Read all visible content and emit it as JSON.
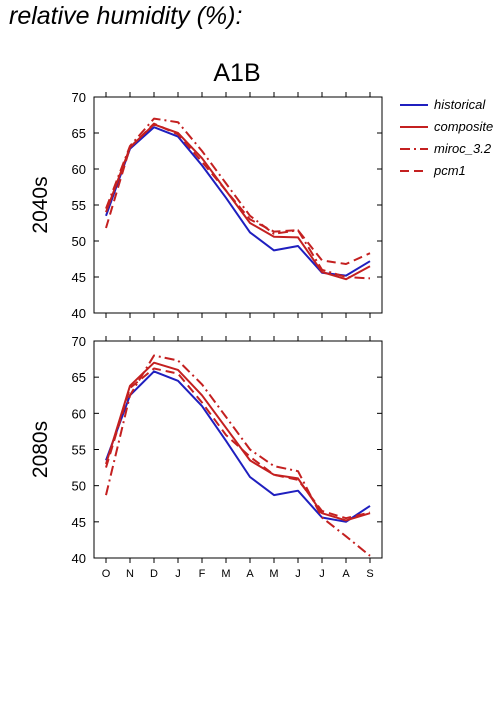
{
  "header": {
    "title": "relative humidity (%):"
  },
  "scenario": "A1B",
  "legend": [
    {
      "name": "historical",
      "color": "#1f1fbf",
      "dash": "solid"
    },
    {
      "name": "composite",
      "color": "#c42020",
      "dash": "solid"
    },
    {
      "name": "miroc_3.2",
      "color": "#c42020",
      "dash": "dashdot"
    },
    {
      "name": "pcm1",
      "color": "#c42020",
      "dash": "dashed"
    }
  ],
  "chart_data": [
    {
      "type": "line",
      "title": "A1B",
      "ylabel": "2040s",
      "xlabel": "",
      "categories": [
        "O",
        "N",
        "D",
        "J",
        "F",
        "M",
        "A",
        "M",
        "J",
        "J",
        "A",
        "S"
      ],
      "ylim": [
        40,
        70
      ],
      "yticks": [
        40,
        45,
        50,
        55,
        60,
        65,
        70
      ],
      "grid": false,
      "legend_position": "right",
      "series": [
        {
          "name": "historical",
          "values": [
            53.5,
            62.8,
            65.8,
            64.5,
            60.5,
            56.0,
            51.2,
            48.7,
            49.3,
            45.6,
            45.2,
            47.2
          ]
        },
        {
          "name": "composite",
          "values": [
            54.0,
            63.0,
            66.2,
            65.0,
            61.5,
            57.0,
            52.5,
            50.6,
            50.5,
            45.7,
            44.7,
            46.5
          ]
        },
        {
          "name": "miroc_3.2",
          "values": [
            54.5,
            63.2,
            67.0,
            66.5,
            62.5,
            58.0,
            53.5,
            51.0,
            51.5,
            46.0,
            45.0,
            44.8
          ]
        },
        {
          "name": "pcm1",
          "values": [
            51.8,
            63.0,
            66.3,
            64.8,
            61.0,
            57.0,
            53.0,
            51.3,
            51.5,
            47.3,
            46.8,
            48.3
          ]
        }
      ]
    },
    {
      "type": "line",
      "title": "",
      "ylabel": "2080s",
      "xlabel": "",
      "categories": [
        "O",
        "N",
        "D",
        "J",
        "F",
        "M",
        "A",
        "M",
        "J",
        "J",
        "A",
        "S"
      ],
      "ylim": [
        40,
        70
      ],
      "yticks": [
        40,
        45,
        50,
        55,
        60,
        65,
        70
      ],
      "grid": false,
      "series": [
        {
          "name": "historical",
          "values": [
            53.5,
            62.5,
            65.8,
            64.5,
            61.0,
            56.2,
            51.2,
            48.7,
            49.3,
            45.6,
            45.0,
            47.2
          ]
        },
        {
          "name": "composite",
          "values": [
            53.0,
            63.8,
            67.0,
            66.0,
            62.5,
            58.0,
            53.5,
            51.5,
            51.0,
            46.2,
            45.2,
            46.2
          ]
        },
        {
          "name": "miroc_3.2",
          "values": [
            48.7,
            62.5,
            68.0,
            67.3,
            64.0,
            59.5,
            55.0,
            52.7,
            52.0,
            45.6,
            43.0,
            40.3
          ]
        },
        {
          "name": "pcm1",
          "values": [
            52.5,
            63.5,
            66.2,
            65.5,
            61.5,
            57.0,
            54.0,
            51.5,
            50.8,
            46.5,
            45.5,
            46.3
          ]
        }
      ]
    }
  ]
}
